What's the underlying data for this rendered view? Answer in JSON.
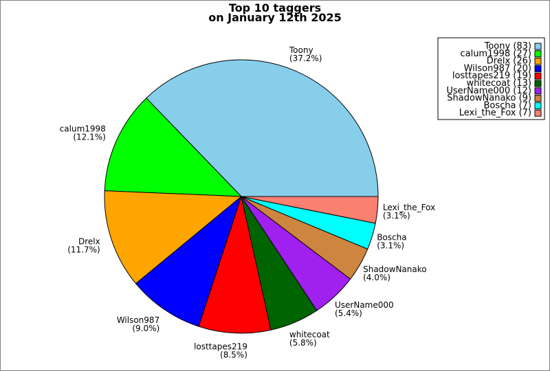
{
  "chart_data": {
    "type": "pie",
    "title": "Top 10 taggers",
    "subtitle": "on January 12th 2025",
    "slices": [
      {
        "label": "Toony",
        "value": 83,
        "percent_label": "(37.2%)",
        "legend": "Toony (83)",
        "color": "#87ceeb"
      },
      {
        "label": "calum1998",
        "value": 27,
        "percent_label": "(12.1%)",
        "legend": "calum1998 (27)",
        "color": "#00ff00"
      },
      {
        "label": "Drelx",
        "value": 26,
        "percent_label": "(11.7%)",
        "legend": "Drelx (26)",
        "color": "#ffa500"
      },
      {
        "label": "Wilson987",
        "value": 20,
        "percent_label": "(9.0%)",
        "legend": "Wilson987 (20)",
        "color": "#0000ff"
      },
      {
        "label": "losttapes219",
        "value": 19,
        "percent_label": "(8.5%)",
        "legend": "losttapes219 (19)",
        "color": "#ff0000"
      },
      {
        "label": "whitecoat",
        "value": 13,
        "percent_label": "(5.8%)",
        "legend": "whitecoat (13)",
        "color": "#006400"
      },
      {
        "label": "UserName000",
        "value": 12,
        "percent_label": "(5.4%)",
        "legend": "UserName000 (12)",
        "color": "#a020f0"
      },
      {
        "label": "ShadowNanako",
        "value": 9,
        "percent_label": "(4.0%)",
        "legend": "ShadowNanako (9)",
        "color": "#cd853f"
      },
      {
        "label": "Boscha",
        "value": 7,
        "percent_label": "(3.1%)",
        "legend": "Boscha (7)",
        "color": "#00ffff"
      },
      {
        "label": "Lexi_the_Fox",
        "value": 7,
        "percent_label": "(3.1%)",
        "legend": "Lexi_the_Fox (7)",
        "color": "#fa8072"
      }
    ],
    "start": "east",
    "direction": "counterclockwise",
    "legend_position": "top-right"
  }
}
